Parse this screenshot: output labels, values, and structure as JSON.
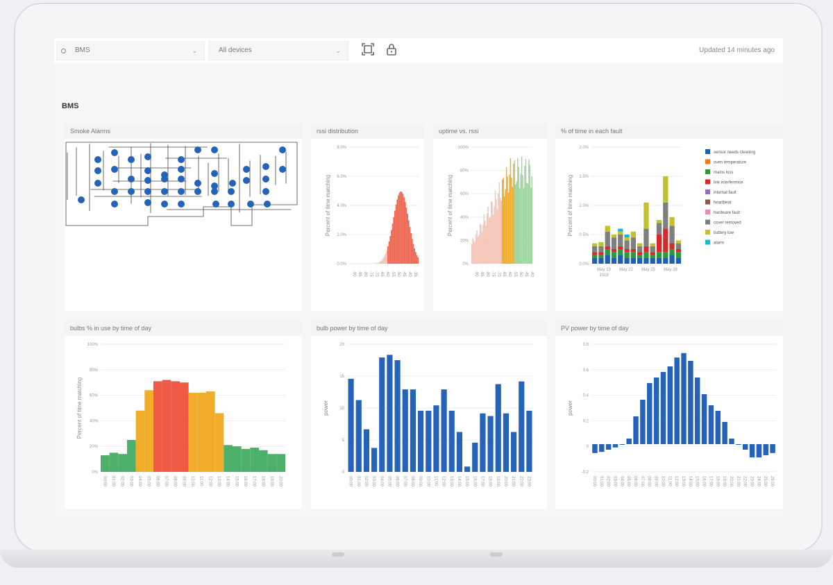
{
  "toolbar": {
    "source_select": "BMS",
    "device_select": "All devices",
    "icons": [
      "fullscreen-icon",
      "lock-icon"
    ],
    "updated": "Updated 14 minutes ago"
  },
  "section": {
    "title": "BMS"
  },
  "panels": {
    "smoke": {
      "title": "Smoke Alarms"
    },
    "rssi": {
      "title": "rssi distribution",
      "ylabel": "Percent of time matching",
      "yticks": [
        "0.0%",
        "2.0%",
        "4.0%",
        "6.0%",
        "8.0%"
      ]
    },
    "uptime": {
      "title": "uptime vs. rssi",
      "ylabel": "Percent of time matching",
      "yticks": [
        "0%",
        "20%",
        "40%",
        "60%",
        "80%",
        "100%"
      ]
    },
    "fault": {
      "title": "% of time in each fault",
      "ylabel": "Percent of time matching",
      "yticks": [
        "0.0%",
        "0.5%",
        "1.0%",
        "1.5%",
        "2.0%"
      ],
      "xticks": [
        "May 19\n2019",
        "May 22",
        "May 25",
        "May 28"
      ]
    },
    "bulbs": {
      "title": "bulbs % in use by time of day",
      "ylabel": "Percent of time matching",
      "yticks": [
        "0%",
        "20%",
        "40%",
        "60%",
        "80%",
        "100%"
      ]
    },
    "bulbpower": {
      "title": "bulb power by time of day",
      "ylabel": "power",
      "yticks": [
        "0",
        "5",
        "10",
        "15",
        "20"
      ]
    },
    "pv": {
      "title": "PV power by time of day",
      "ylabel": "power",
      "yticks": [
        "-0.2",
        "0",
        "0.2",
        "0.4",
        "0.6",
        "0.8"
      ]
    }
  },
  "colors": {
    "accent_blue": "#2563b8",
    "green": "#4caf6a",
    "orange": "#f0ad2a",
    "red": "#ee5a45"
  },
  "chart_data": [
    {
      "type": "bar",
      "title": "% of time in each fault",
      "ylabel": "Percent of time matching",
      "ylim": [
        0,
        2.0
      ],
      "legend_position": "right",
      "legend": [
        {
          "name": "sensor needs cleaning",
          "color": "#1f5fb0"
        },
        {
          "name": "oven temperature",
          "color": "#f07a1a"
        },
        {
          "name": "mains loss",
          "color": "#2a9a3a"
        },
        {
          "name": "link interference",
          "color": "#d62a28"
        },
        {
          "name": "internal fault",
          "color": "#9a6ac0"
        },
        {
          "name": "heartbeat",
          "color": "#8a5a4a"
        },
        {
          "name": "hardware fault",
          "color": "#e98ab0"
        },
        {
          "name": "cover removed",
          "color": "#7f7f7f"
        },
        {
          "name": "battery low",
          "color": "#c2c22a"
        },
        {
          "name": "alarm",
          "color": "#1fb3d0"
        }
      ],
      "stacks": [
        [
          0.1,
          0,
          0.05,
          0.05,
          0,
          0,
          0,
          0.1,
          0.05,
          0
        ],
        [
          0.1,
          0,
          0.05,
          0.05,
          0,
          0,
          0,
          0.1,
          0.07,
          0
        ],
        [
          0.15,
          0,
          0.1,
          0.05,
          0,
          0,
          0,
          0.25,
          0.1,
          0
        ],
        [
          0.1,
          0,
          0.1,
          0.05,
          0,
          0,
          0,
          0.2,
          0.05,
          0
        ],
        [
          0.15,
          0,
          0.1,
          0.05,
          0,
          0,
          0,
          0.2,
          0.05,
          0.05
        ],
        [
          0.1,
          0,
          0.1,
          0.05,
          0,
          0,
          0,
          0.15,
          0.05,
          0.05
        ],
        [
          0.1,
          0,
          0.1,
          0.05,
          0,
          0,
          0,
          0.2,
          0.1,
          0
        ],
        [
          0.1,
          0,
          0.05,
          0.05,
          0,
          0,
          0,
          0.1,
          0.05,
          0
        ],
        [
          0.1,
          0,
          0.1,
          0.1,
          0,
          0,
          0,
          0.3,
          0.45,
          0
        ],
        [
          0.1,
          0,
          0.05,
          0.05,
          0,
          0,
          0,
          0.1,
          0.05,
          0
        ],
        [
          0.1,
          0,
          0.1,
          0.3,
          0,
          0,
          0,
          0.2,
          0.05,
          0
        ],
        [
          0.1,
          0,
          0.1,
          0.4,
          0,
          0,
          0,
          0.45,
          0.45,
          0
        ],
        [
          0.15,
          0,
          0.1,
          0.1,
          0,
          0,
          0,
          0.3,
          0.15,
          0
        ],
        [
          0.1,
          0,
          0.1,
          0.05,
          0,
          0,
          0,
          0.1,
          0.05,
          0
        ]
      ]
    },
    {
      "type": "bar",
      "title": "bulbs % in use by time of day",
      "ylabel": "Percent of time matching",
      "ylim": [
        0,
        100
      ],
      "values": [
        13,
        15,
        14,
        25,
        48,
        64,
        71,
        72,
        71,
        70,
        62,
        62,
        63,
        46,
        21,
        20,
        18,
        19,
        17,
        14,
        14
      ],
      "colors": [
        "#4caf6a",
        "#4caf6a",
        "#4caf6a",
        "#4caf6a",
        "#f0ad2a",
        "#f0ad2a",
        "#ee5a45",
        "#ee5a45",
        "#ee5a45",
        "#ee5a45",
        "#f0ad2a",
        "#f0ad2a",
        "#f0ad2a",
        "#f0ad2a",
        "#4caf6a",
        "#4caf6a",
        "#4caf6a",
        "#4caf6a",
        "#4caf6a",
        "#4caf6a",
        "#4caf6a"
      ]
    },
    {
      "type": "bar",
      "title": "bulb power by time of day",
      "ylabel": "power",
      "ylim": [
        0,
        24
      ],
      "values": [
        17.5,
        13.5,
        8,
        4.5,
        21.5,
        22,
        21,
        15.5,
        15.5,
        11.5,
        11.5,
        12.5,
        15.5,
        11.5,
        7.5,
        1,
        5.5,
        11,
        10.5,
        16.5,
        11,
        7.5,
        17,
        11.5
      ]
    },
    {
      "type": "bar",
      "title": "PV power by time of day",
      "ylabel": "power",
      "ylim": [
        -0.25,
        0.9
      ],
      "values": [
        -0.08,
        -0.07,
        -0.05,
        -0.03,
        0,
        0.05,
        0.25,
        0.4,
        0.55,
        0.6,
        0.65,
        0.7,
        0.78,
        0.82,
        0.75,
        0.6,
        0.45,
        0.35,
        0.3,
        0.2,
        0.05,
        0,
        -0.05,
        -0.12,
        -0.12,
        -0.1,
        -0.08
      ]
    }
  ]
}
